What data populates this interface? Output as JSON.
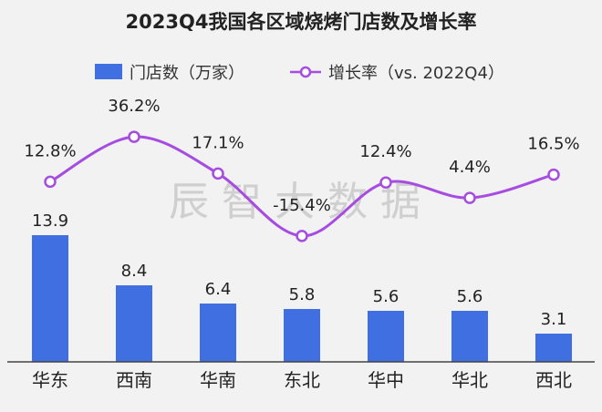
{
  "chart_data": {
    "type": "bar",
    "title": "2023Q4我国各区域烧烤门店数及增长率",
    "categories": [
      "华东",
      "西南",
      "华南",
      "东北",
      "华中",
      "华北",
      "西北"
    ],
    "series": [
      {
        "name": "门店数（万家）",
        "type": "bar",
        "values": [
          13.9,
          8.4,
          6.4,
          5.8,
          5.6,
          5.6,
          3.1
        ],
        "labels": [
          "13.9",
          "8.4",
          "6.4",
          "5.8",
          "5.6",
          "5.6",
          "3.1"
        ],
        "color": "#3f6fe0"
      },
      {
        "name": "增长率（vs. 2022Q4）",
        "type": "line",
        "smooth": true,
        "values": [
          12.8,
          36.2,
          17.1,
          -15.4,
          12.4,
          4.4,
          16.5
        ],
        "labels": [
          "12.8%",
          "36.2%",
          "17.1%",
          "-15.4%",
          "12.4%",
          "4.4%",
          "16.5%"
        ],
        "color": "#a64ce0"
      }
    ],
    "legend_position": "top",
    "grid": false,
    "watermark": "辰智大数据"
  },
  "colors": {
    "background": "#f2f2f2",
    "bar": "#3f6fe0",
    "line": "#a64ce0",
    "axis": "#444444"
  }
}
